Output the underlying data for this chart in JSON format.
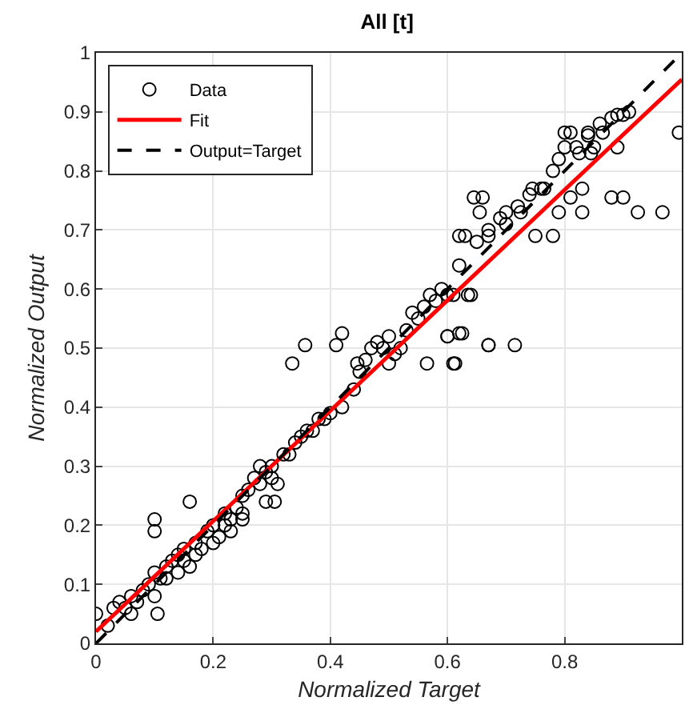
{
  "chart_data": {
    "type": "scatter",
    "title": "All [t]",
    "xlabel": "Normalized Target",
    "ylabel": "Normalized Output",
    "xlim": [
      0,
      1
    ],
    "ylim": [
      0,
      1
    ],
    "xticks": [
      0,
      0.2,
      0.4,
      0.6,
      0.8
    ],
    "yticks": [
      0,
      0.1,
      0.2,
      0.3,
      0.4,
      0.5,
      0.6,
      0.7,
      0.8,
      0.9,
      1
    ],
    "grid": true,
    "legend": "top left",
    "series": [
      {
        "name": "Data",
        "marker": "circle",
        "color": "#000000",
        "x": [
          0,
          0.1,
          0.1,
          0.16,
          0.105,
          0.06,
          0.305,
          0.29,
          0.25,
          0.23,
          0.357,
          0.335,
          0.42,
          0.41,
          0.446,
          0.5,
          0.565,
          0.613,
          0.6,
          0.625,
          0.67,
          0.64,
          0.995,
          0.967,
          0.925,
          0.88,
          0.9,
          0.78,
          0.75,
          0.67,
          0.62,
          0.645,
          0.66,
          0.655,
          0.7,
          0.725,
          0.79,
          0.83,
          0.83,
          0.745,
          0.765,
          0.81,
          0.89,
          0.8,
          0.81,
          0.84,
          0.865,
          0.8,
          0.825,
          0.845,
          0.85,
          0.89,
          0.9,
          0.635,
          0.61,
          0.62,
          0.6,
          0.67,
          0.715,
          0.61,
          0.02,
          0.03,
          0.04,
          0.05,
          0.06,
          0.07,
          0.08,
          0.09,
          0.1,
          0.1,
          0.11,
          0.12,
          0.12,
          0.13,
          0.14,
          0.14,
          0.15,
          0.15,
          0.16,
          0.17,
          0.17,
          0.18,
          0.19,
          0.2,
          0.2,
          0.21,
          0.22,
          0.22,
          0.23,
          0.24,
          0.25,
          0.25,
          0.26,
          0.27,
          0.28,
          0.28,
          0.29,
          0.3,
          0.3,
          0.31,
          0.32,
          0.33,
          0.34,
          0.35,
          0.36,
          0.37,
          0.38,
          0.39,
          0.4,
          0.42,
          0.44,
          0.45,
          0.46,
          0.47,
          0.48,
          0.49,
          0.5,
          0.51,
          0.52,
          0.53,
          0.54,
          0.55,
          0.56,
          0.57,
          0.58,
          0.59,
          0.6,
          0.62,
          0.63,
          0.65,
          0.67,
          0.69,
          0.7,
          0.72,
          0.74,
          0.76,
          0.78,
          0.79,
          0.82,
          0.84,
          0.86,
          0.88,
          0.91
        ],
        "values": [
          0.05,
          0.21,
          0.19,
          0.24,
          0.05,
          0.05,
          0.24,
          0.24,
          0.21,
          0.19,
          0.505,
          0.474,
          0.525,
          0.505,
          0.474,
          0.474,
          0.474,
          0.474,
          0.52,
          0.525,
          0.505,
          0.59,
          0.865,
          0.73,
          0.73,
          0.755,
          0.755,
          0.69,
          0.69,
          0.69,
          0.69,
          0.755,
          0.755,
          0.73,
          0.73,
          0.73,
          0.73,
          0.73,
          0.77,
          0.77,
          0.77,
          0.755,
          0.84,
          0.865,
          0.865,
          0.865,
          0.865,
          0.84,
          0.83,
          0.83,
          0.84,
          0.895,
          0.895,
          0.59,
          0.59,
          0.525,
          0.52,
          0.505,
          0.505,
          0.474,
          0.03,
          0.06,
          0.07,
          0.06,
          0.08,
          0.07,
          0.09,
          0.1,
          0.12,
          0.08,
          0.11,
          0.11,
          0.13,
          0.14,
          0.15,
          0.12,
          0.14,
          0.16,
          0.13,
          0.17,
          0.15,
          0.16,
          0.19,
          0.2,
          0.17,
          0.18,
          0.2,
          0.22,
          0.21,
          0.23,
          0.25,
          0.22,
          0.26,
          0.28,
          0.27,
          0.3,
          0.29,
          0.3,
          0.28,
          0.27,
          0.32,
          0.32,
          0.34,
          0.35,
          0.36,
          0.36,
          0.38,
          0.38,
          0.39,
          0.4,
          0.43,
          0.46,
          0.48,
          0.5,
          0.51,
          0.5,
          0.52,
          0.49,
          0.5,
          0.53,
          0.56,
          0.55,
          0.57,
          0.59,
          0.58,
          0.6,
          0.59,
          0.64,
          0.69,
          0.68,
          0.7,
          0.72,
          0.71,
          0.74,
          0.76,
          0.77,
          0.8,
          0.82,
          0.84,
          0.86,
          0.88,
          0.89,
          0.9
        ]
      },
      {
        "name": "Fit",
        "type": "line",
        "line_style": "solid",
        "marker": "none",
        "color": "#ff0000",
        "x": [
          0,
          1
        ],
        "values": [
          0.02,
          0.955
        ]
      },
      {
        "name": "Output=Target",
        "type": "line",
        "line_style": "dashed",
        "marker": "none",
        "color": "#000000",
        "x": [
          0,
          1
        ],
        "values": [
          0,
          1
        ]
      }
    ]
  }
}
